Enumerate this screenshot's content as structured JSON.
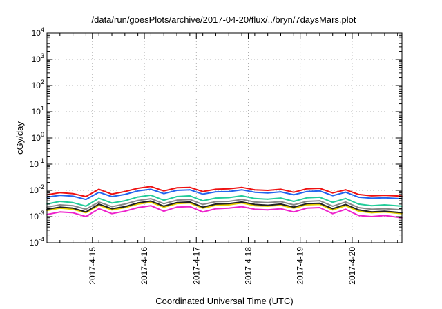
{
  "chart_data": {
    "type": "line",
    "title": "/data/run/goesPlots/archive/2017-04-20/flux/../bryn/7daysMars.plot",
    "xlabel": "Coordinated Universal Time (UTC)",
    "ylabel": "cGy/day",
    "y_scale": "log",
    "ylim": [
      0.0001,
      10000
    ],
    "y_ticks": [
      {
        "base": "10",
        "exp": "-4"
      },
      {
        "base": "10",
        "exp": "-3"
      },
      {
        "base": "10",
        "exp": "-2"
      },
      {
        "base": "10",
        "exp": "-1"
      },
      {
        "base": "10",
        "exp": "0"
      },
      {
        "base": "10",
        "exp": "1"
      },
      {
        "base": "10",
        "exp": "2"
      },
      {
        "base": "10",
        "exp": "3"
      },
      {
        "base": "10",
        "exp": "4"
      }
    ],
    "xlim": [
      "2017-04-14T03:00",
      "2017-04-20T23:00"
    ],
    "x_ticks": [
      "2017-4-15",
      "2017-4-16",
      "2017-4-17",
      "2017-4-18",
      "2017-4-19",
      "2017-4-20"
    ],
    "grid": true,
    "x": [
      "2017-04-14T03:00",
      "2017-04-14T09:00",
      "2017-04-14T15:00",
      "2017-04-14T21:00",
      "2017-04-15T03:00",
      "2017-04-15T09:00",
      "2017-04-15T15:00",
      "2017-04-15T21:00",
      "2017-04-16T03:00",
      "2017-04-16T09:00",
      "2017-04-16T15:00",
      "2017-04-16T21:00",
      "2017-04-17T03:00",
      "2017-04-17T09:00",
      "2017-04-17T15:00",
      "2017-04-17T21:00",
      "2017-04-18T03:00",
      "2017-04-18T09:00",
      "2017-04-18T15:00",
      "2017-04-18T21:00",
      "2017-04-19T03:00",
      "2017-04-19T09:00",
      "2017-04-19T15:00",
      "2017-04-19T21:00",
      "2017-04-20T03:00",
      "2017-04-20T09:00",
      "2017-04-20T15:00",
      "2017-04-20T23:00"
    ],
    "series": [
      {
        "color": "#ee1111",
        "values": [
          0.0068,
          0.0082,
          0.0075,
          0.0058,
          0.011,
          0.0072,
          0.009,
          0.012,
          0.014,
          0.0095,
          0.0125,
          0.013,
          0.009,
          0.011,
          0.0115,
          0.013,
          0.0105,
          0.01,
          0.011,
          0.0085,
          0.0115,
          0.012,
          0.008,
          0.0105,
          0.007,
          0.0062,
          0.0065,
          0.006
        ]
      },
      {
        "color": "#2266ee",
        "values": [
          0.0055,
          0.0065,
          0.006,
          0.0045,
          0.0085,
          0.0058,
          0.007,
          0.0095,
          0.011,
          0.0075,
          0.01,
          0.0105,
          0.0072,
          0.0088,
          0.009,
          0.0105,
          0.0085,
          0.008,
          0.0088,
          0.0068,
          0.009,
          0.0095,
          0.0063,
          0.0085,
          0.0055,
          0.005,
          0.0052,
          0.0048
        ]
      },
      {
        "color": "#22cc99",
        "values": [
          0.003,
          0.0038,
          0.0034,
          0.0025,
          0.005,
          0.0033,
          0.004,
          0.0056,
          0.0066,
          0.0042,
          0.0058,
          0.0062,
          0.004,
          0.0051,
          0.0053,
          0.0062,
          0.0049,
          0.0046,
          0.0051,
          0.0038,
          0.0052,
          0.0055,
          0.0035,
          0.0049,
          0.003,
          0.0026,
          0.0028,
          0.0025
        ]
      },
      {
        "color": "#888888",
        "values": [
          0.0023,
          0.0028,
          0.0026,
          0.0019,
          0.0036,
          0.0024,
          0.003,
          0.0041,
          0.0048,
          0.0031,
          0.0042,
          0.0045,
          0.0029,
          0.0037,
          0.0038,
          0.0045,
          0.0036,
          0.0034,
          0.0037,
          0.0028,
          0.0038,
          0.004,
          0.0025,
          0.0036,
          0.0022,
          0.0019,
          0.002,
          0.0018
        ]
      },
      {
        "color": "#e8d000",
        "values": [
          0.0017,
          0.0021,
          0.0019,
          0.0014,
          0.0027,
          0.0018,
          0.0022,
          0.003,
          0.0035,
          0.0023,
          0.0031,
          0.0033,
          0.0021,
          0.0027,
          0.0028,
          0.0033,
          0.0026,
          0.0025,
          0.0027,
          0.0021,
          0.0028,
          0.0029,
          0.0018,
          0.0026,
          0.0016,
          0.0014,
          0.0015,
          0.0013
        ]
      },
      {
        "color": "#222222",
        "values": [
          0.0019,
          0.0023,
          0.0021,
          0.0015,
          0.003,
          0.002,
          0.0024,
          0.0033,
          0.0039,
          0.0025,
          0.0034,
          0.0036,
          0.0023,
          0.003,
          0.0031,
          0.0036,
          0.0029,
          0.0027,
          0.003,
          0.0023,
          0.0031,
          0.0032,
          0.002,
          0.0029,
          0.0018,
          0.0015,
          0.0016,
          0.0014
        ]
      },
      {
        "color": "#ee22cc",
        "values": [
          0.0012,
          0.0015,
          0.0014,
          0.001,
          0.002,
          0.0013,
          0.0016,
          0.0022,
          0.0026,
          0.0016,
          0.0023,
          0.0024,
          0.0015,
          0.002,
          0.0021,
          0.0024,
          0.0019,
          0.0018,
          0.002,
          0.0015,
          0.0021,
          0.0022,
          0.0013,
          0.0019,
          0.0011,
          0.001,
          0.0011,
          0.0009
        ]
      }
    ]
  }
}
